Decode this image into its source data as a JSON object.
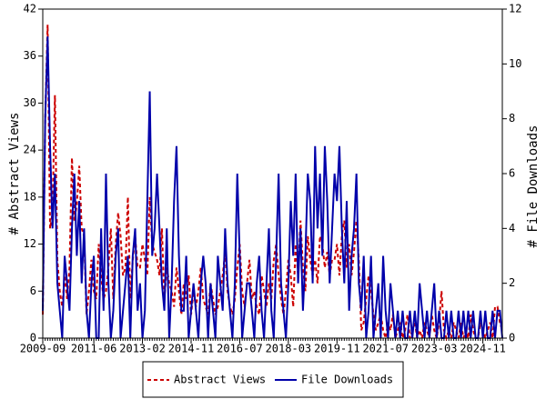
{
  "chart_data": {
    "type": "line",
    "y_label": "# Abstract Views",
    "y2_label": "# File Downloads",
    "categories": [
      "2009-09",
      null,
      null,
      null,
      null,
      null,
      null,
      null,
      null,
      null,
      null,
      null,
      null,
      null,
      null,
      null,
      null,
      null,
      null,
      null,
      null,
      "2011-06",
      null,
      null,
      null,
      null,
      null,
      null,
      null,
      null,
      null,
      null,
      null,
      null,
      null,
      null,
      null,
      null,
      null,
      null,
      null,
      "2013-02",
      null,
      null,
      null,
      null,
      null,
      null,
      null,
      null,
      null,
      null,
      null,
      null,
      null,
      null,
      null,
      null,
      null,
      null,
      null,
      "2014-11",
      null,
      null,
      null,
      null,
      null,
      null,
      null,
      null,
      null,
      null,
      null,
      null,
      null,
      null,
      null,
      null,
      null,
      null,
      null,
      "2016-07",
      null,
      null,
      null,
      null,
      null,
      null,
      null,
      null,
      null,
      null,
      null,
      null,
      null,
      null,
      null,
      null,
      null,
      null,
      null,
      "2018-03",
      null,
      null,
      null,
      null,
      null,
      null,
      null,
      null,
      null,
      null,
      null,
      null,
      null,
      null,
      null,
      null,
      null,
      null,
      null,
      "2019-11",
      null,
      null,
      null,
      null,
      null,
      null,
      null,
      null,
      null,
      null,
      null,
      null,
      null,
      null,
      null,
      null,
      null,
      null,
      null,
      "2021-07",
      null,
      null,
      null,
      null,
      null,
      null,
      null,
      null,
      null,
      null,
      null,
      null,
      null,
      null,
      null,
      null,
      null,
      null,
      null,
      "2023-03",
      null,
      null,
      null,
      null,
      null,
      null,
      null,
      null,
      null,
      null,
      null,
      null,
      null,
      null,
      null,
      null,
      null,
      null,
      null,
      "2024-11",
      null,
      null,
      null,
      null,
      null,
      null,
      null,
      null
    ],
    "series": [
      {
        "name": "Abstract Views",
        "color": "#cc0000",
        "dash": true,
        "axis": "y",
        "values": [
          3,
          28,
          40,
          14,
          16,
          31,
          10,
          6,
          4,
          8,
          5,
          9,
          23,
          15,
          17,
          22,
          14,
          13,
          3,
          6,
          10,
          6,
          5,
          12,
          8,
          5,
          6,
          9,
          14,
          5,
          12,
          16,
          13,
          8,
          9,
          18,
          5,
          10,
          13,
          9,
          9,
          12,
          10,
          8,
          18,
          12,
          11,
          10,
          8,
          14,
          5,
          9,
          7,
          6,
          4,
          9,
          6,
          3,
          7,
          5,
          8,
          3,
          6,
          4,
          6,
          9,
          5,
          4,
          3,
          7,
          5,
          3,
          4,
          6,
          8,
          11,
          6,
          4,
          3,
          5,
          9,
          12,
          6,
          4,
          7,
          10,
          5,
          6,
          4,
          3,
          8,
          6,
          4,
          7,
          5,
          10,
          12,
          8,
          5,
          3,
          6,
          10,
          8,
          4,
          12,
          8,
          15,
          9,
          6,
          13,
          10,
          8,
          10,
          7,
          13,
          12,
          9,
          11,
          8,
          10,
          10,
          12,
          8,
          13,
          15,
          9,
          12,
          8,
          11,
          15,
          10,
          1,
          2,
          5,
          8,
          6,
          3,
          1,
          2,
          3,
          1,
          0,
          2,
          1,
          3,
          0,
          1,
          2,
          0,
          1,
          3,
          0,
          1,
          2,
          0,
          1,
          0,
          2,
          1,
          0,
          3,
          1,
          0,
          2,
          6,
          1,
          0,
          1,
          0,
          2,
          1,
          0,
          2,
          0,
          1,
          0,
          3,
          1,
          0,
          0,
          2,
          1,
          0,
          1,
          2,
          0,
          4,
          4,
          2,
          1
        ]
      },
      {
        "name": "File Downloads",
        "color": "#0000aa",
        "dash": false,
        "axis": "y2",
        "values": [
          1,
          8,
          11,
          7,
          4,
          6,
          2,
          1,
          0,
          3,
          2,
          1,
          4,
          6,
          3,
          5,
          2,
          4,
          1,
          0,
          2,
          3,
          0,
          0,
          4,
          1,
          6,
          2,
          0,
          1,
          3,
          4,
          0,
          1,
          2,
          3,
          0,
          3,
          4,
          1,
          2,
          0,
          1,
          5,
          9,
          3,
          4,
          6,
          4,
          2,
          1,
          4,
          0,
          2,
          5,
          7,
          3,
          1,
          1,
          3,
          0,
          1,
          2,
          1,
          0,
          2,
          3,
          2,
          0,
          2,
          1,
          0,
          3,
          2,
          1,
          4,
          2,
          1,
          0,
          2,
          6,
          3,
          0,
          1,
          2,
          2,
          1,
          0,
          2,
          3,
          1,
          0,
          2,
          4,
          1,
          0,
          3,
          6,
          2,
          1,
          0,
          2,
          5,
          3,
          6,
          2,
          4,
          1,
          3,
          6,
          5,
          2,
          7,
          4,
          6,
          3,
          7,
          5,
          2,
          4,
          6,
          5,
          7,
          4,
          2,
          5,
          1,
          3,
          4,
          6,
          2,
          1,
          3,
          0,
          1,
          3,
          0,
          1,
          2,
          0,
          3,
          1,
          0,
          2,
          1,
          0,
          1,
          0,
          1,
          0,
          0,
          1,
          0,
          1,
          0,
          2,
          1,
          0,
          1,
          0,
          1,
          2,
          0,
          1,
          0,
          0,
          1,
          0,
          1,
          0,
          0,
          1,
          0,
          1,
          0,
          1,
          0,
          1,
          0,
          0,
          1,
          0,
          1,
          0,
          0,
          1,
          0,
          1,
          1,
          0
        ]
      }
    ],
    "ylim": [
      0,
      42
    ],
    "yticks": [
      0,
      6,
      12,
      18,
      24,
      30,
      36,
      42
    ],
    "y2lim": [
      0,
      12
    ],
    "y2ticks": [
      0,
      2,
      4,
      6,
      8,
      10,
      12
    ],
    "legend": "bottom"
  }
}
